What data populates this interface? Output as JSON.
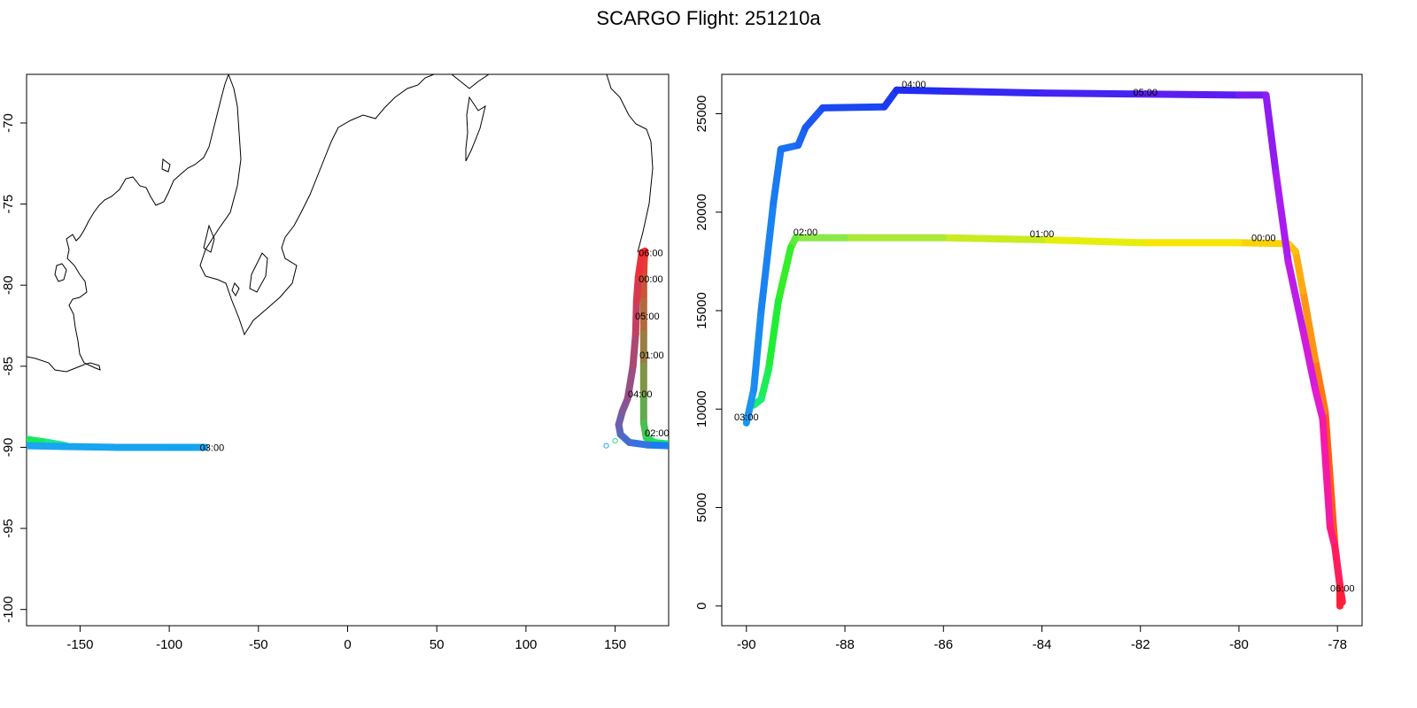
{
  "title": "SCARGO Flight: 251210a",
  "chart_data": [
    {
      "type": "scatter",
      "name": "track-map",
      "title": "",
      "xlabel": "",
      "ylabel": "",
      "xlim": [
        -180,
        180
      ],
      "ylim": [
        -101,
        -67
      ],
      "xticks": [
        -150,
        -100,
        -50,
        0,
        50,
        100,
        150
      ],
      "yticks": [
        -70,
        -75,
        -80,
        -85,
        -90,
        -95,
        -100
      ],
      "series": [
        {
          "name": "outbound-leg",
          "start_color": "#ff2a2a",
          "end_color": "#17e85f",
          "points": [
            [
              166.7,
              -77.9
            ],
            [
              166.3,
              -78.5
            ],
            [
              166.0,
              -79.5
            ],
            [
              166.0,
              -81.0
            ],
            [
              166.0,
              -83.0
            ],
            [
              166.0,
              -85.0
            ],
            [
              166.0,
              -87.0
            ],
            [
              166.0,
              -88.5
            ],
            [
              167.5,
              -89.4
            ],
            [
              172.0,
              -89.7
            ],
            [
              180.0,
              -89.8
            ]
          ]
        },
        {
          "name": "west-leg-green",
          "start_color": "#17e85f",
          "end_color": "#19e890",
          "points": [
            [
              -180.0,
              -89.5
            ],
            [
              -168.0,
              -89.7
            ],
            [
              -158.0,
              -89.9
            ]
          ]
        },
        {
          "name": "west-leg-blue",
          "start_color": "#1aa6f0",
          "end_color": "#14a3ee",
          "points": [
            [
              -180.0,
              -89.9
            ],
            [
              -160.0,
              -89.95
            ],
            [
              -130.0,
              -90.0
            ],
            [
              -100.0,
              -90.0
            ],
            [
              -80.0,
              -90.0
            ]
          ]
        },
        {
          "name": "return-leg",
          "start_color": "#1d7cf2",
          "end_color": "#ff2a2a",
          "points": [
            [
              180.0,
              -89.9
            ],
            [
              168.0,
              -89.85
            ],
            [
              158.0,
              -89.7
            ],
            [
              153.0,
              -89.2
            ],
            [
              152.0,
              -88.6
            ],
            [
              154.0,
              -87.8
            ],
            [
              157.0,
              -87.0
            ],
            [
              160.0,
              -85.0
            ],
            [
              161.5,
              -83.0
            ],
            [
              162.0,
              -81.0
            ],
            [
              163.0,
              -79.5
            ],
            [
              165.0,
              -78.0
            ],
            [
              166.7,
              -77.9
            ]
          ]
        }
      ],
      "isolated_points": [
        {
          "lon": 145.0,
          "lat": -89.9,
          "color": "#1aa6f0"
        },
        {
          "lon": 150.0,
          "lat": -89.6,
          "color": "#26e08a"
        }
      ],
      "labels": [
        {
          "text": "06:00",
          "lon": 170.0,
          "lat": -78.0
        },
        {
          "text": "00:00",
          "lon": 170.0,
          "lat": -79.6
        },
        {
          "text": "05:00",
          "lon": 168.0,
          "lat": -81.9
        },
        {
          "text": "01:00",
          "lon": 170.5,
          "lat": -84.3
        },
        {
          "text": "04:00",
          "lon": 164.0,
          "lat": -86.7
        },
        {
          "text": "02:00",
          "lon": 173.5,
          "lat": -89.1
        },
        {
          "text": "03:00",
          "lon": -76.0,
          "lat": -90.0
        }
      ]
    },
    {
      "type": "scatter",
      "name": "altitude-profile",
      "title": "",
      "xlabel": "",
      "ylabel": "",
      "xlim": [
        -90.5,
        -77.5
      ],
      "ylim": [
        -1000,
        27000
      ],
      "xticks": [
        -90,
        -88,
        -86,
        -84,
        -82,
        -80,
        -78
      ],
      "yticks": [
        0,
        5000,
        10000,
        15000,
        20000,
        25000
      ],
      "series": [
        {
          "name": "outbound-profile",
          "color_stops": [
            [
              0,
              "#ff1f3a"
            ],
            [
              0.12,
              "#ff5a12"
            ],
            [
              0.25,
              "#ff9d14"
            ],
            [
              0.5,
              "#f5f000"
            ],
            [
              0.7,
              "#8ee84a"
            ],
            [
              0.85,
              "#22ee22"
            ],
            [
              1,
              "#16ee74"
            ]
          ],
          "points": [
            [
              -77.9,
              200
            ],
            [
              -78.0,
              2000
            ],
            [
              -78.05,
              3000
            ],
            [
              -78.25,
              9900
            ],
            [
              -78.45,
              12500
            ],
            [
              -78.7,
              16000
            ],
            [
              -78.85,
              18000
            ],
            [
              -79.0,
              18400
            ],
            [
              -80.0,
              18450
            ],
            [
              -82.0,
              18450
            ],
            [
              -84.0,
              18600
            ],
            [
              -86.0,
              18700
            ],
            [
              -88.0,
              18700
            ],
            [
              -89.0,
              18700
            ],
            [
              -89.1,
              18200
            ],
            [
              -89.35,
              15500
            ],
            [
              -89.55,
              12000
            ],
            [
              -89.7,
              10500
            ],
            [
              -89.85,
              10200
            ]
          ]
        },
        {
          "name": "return-profile",
          "color_stops": [
            [
              0,
              "#1a95f0"
            ],
            [
              0.2,
              "#1a6ef2"
            ],
            [
              0.4,
              "#1c2ef2"
            ],
            [
              0.55,
              "#5d1df2"
            ],
            [
              0.7,
              "#b41cf0"
            ],
            [
              0.82,
              "#e61bd0"
            ],
            [
              0.9,
              "#ff1a85"
            ],
            [
              1,
              "#ff1f3a"
            ]
          ],
          "points": [
            [
              -90.0,
              9300
            ],
            [
              -89.85,
              11000
            ],
            [
              -89.7,
              15000
            ],
            [
              -89.45,
              20500
            ],
            [
              -89.3,
              23200
            ],
            [
              -88.95,
              23400
            ],
            [
              -88.8,
              24300
            ],
            [
              -88.45,
              25300
            ],
            [
              -87.2,
              25350
            ],
            [
              -86.95,
              26200
            ],
            [
              -86.0,
              26150
            ],
            [
              -84.0,
              26050
            ],
            [
              -82.0,
              26000
            ],
            [
              -80.0,
              25950
            ],
            [
              -79.45,
              25950
            ],
            [
              -79.25,
              22000
            ],
            [
              -79.0,
              17500
            ],
            [
              -78.7,
              14000
            ],
            [
              -78.45,
              11000
            ],
            [
              -78.3,
              9500
            ],
            [
              -78.15,
              4000
            ],
            [
              -78.05,
              3000
            ],
            [
              -77.95,
              1000
            ],
            [
              -77.95,
              0
            ]
          ]
        }
      ],
      "labels": [
        {
          "text": "04:00",
          "lon": -86.6,
          "alt": 26500
        },
        {
          "text": "05:00",
          "lon": -81.9,
          "alt": 26100
        },
        {
          "text": "02:00",
          "lon": -88.8,
          "alt": 19000
        },
        {
          "text": "01:00",
          "lon": -84.0,
          "alt": 18900
        },
        {
          "text": "00:00",
          "lon": -79.5,
          "alt": 18700
        },
        {
          "text": "03:00",
          "lon": -90.0,
          "alt": 9600
        },
        {
          "text": "06:00",
          "lon": -77.9,
          "alt": 900
        }
      ]
    }
  ]
}
